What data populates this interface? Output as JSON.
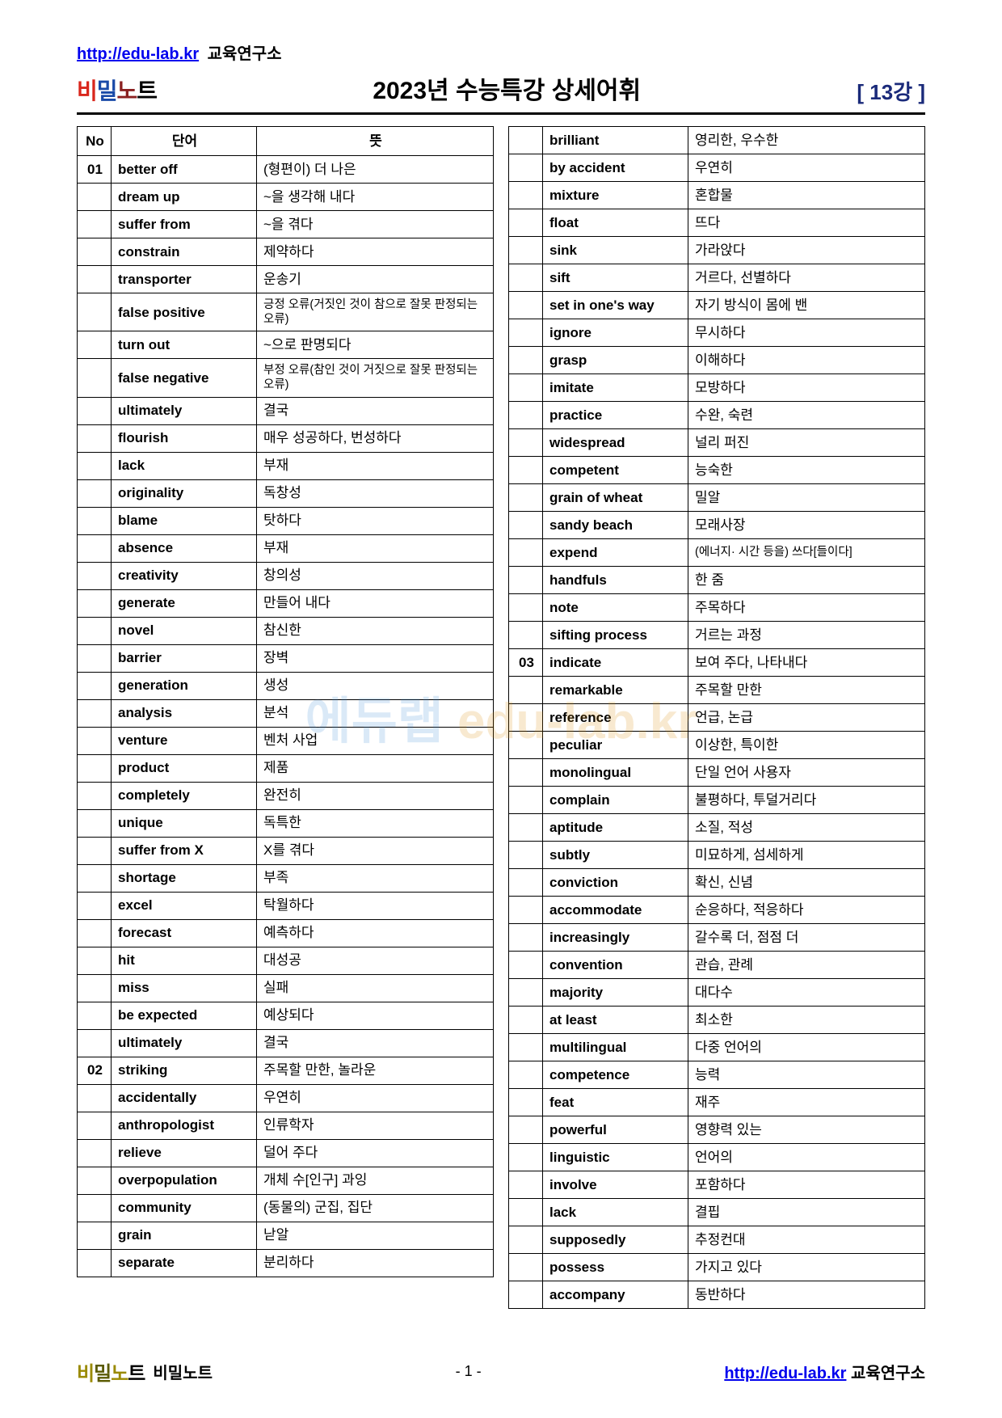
{
  "header": {
    "url": "http://edu-lab.kr",
    "org": "교육연구소",
    "logo_parts": [
      "비",
      "밀",
      "노",
      "트"
    ],
    "title": "2023년  수능특강  상세어휘",
    "lesson": "[ 13강 ]"
  },
  "table_headers": {
    "no": "No",
    "word": "단어",
    "meaning": "뜻"
  },
  "left": [
    {
      "no": "01",
      "w": "better off",
      "m": "(형편이) 더 나은"
    },
    {
      "no": "",
      "w": "dream up",
      "m": "~을 생각해 내다"
    },
    {
      "no": "",
      "w": "suffer from",
      "m": "~을 겪다"
    },
    {
      "no": "",
      "w": "constrain",
      "m": "제약하다"
    },
    {
      "no": "",
      "w": "transporter",
      "m": "운송기"
    },
    {
      "no": "",
      "w": "false positive",
      "m": "긍정 오류(거짓인 것이 참으로 잘못 판정되는 오류)",
      "small": true
    },
    {
      "no": "",
      "w": "turn out",
      "m": "~으로 판명되다"
    },
    {
      "no": "",
      "w": "false negative",
      "m": "부정 오류(참인 것이 거짓으로 잘못 판정되는 오류)",
      "small": true
    },
    {
      "no": "",
      "w": "ultimately",
      "m": "결국"
    },
    {
      "no": "",
      "w": "flourish",
      "m": "매우 성공하다, 번성하다"
    },
    {
      "no": "",
      "w": "lack",
      "m": "부재"
    },
    {
      "no": "",
      "w": "originality",
      "m": "독창성"
    },
    {
      "no": "",
      "w": "blame",
      "m": "탓하다"
    },
    {
      "no": "",
      "w": "absence",
      "m": "부재"
    },
    {
      "no": "",
      "w": "creativity",
      "m": "창의성"
    },
    {
      "no": "",
      "w": "generate",
      "m": "만들어 내다"
    },
    {
      "no": "",
      "w": "novel",
      "m": "참신한"
    },
    {
      "no": "",
      "w": "barrier",
      "m": "장벽"
    },
    {
      "no": "",
      "w": "generation",
      "m": "생성"
    },
    {
      "no": "",
      "w": "analysis",
      "m": "분석"
    },
    {
      "no": "",
      "w": "venture",
      "m": "벤처 사업"
    },
    {
      "no": "",
      "w": "product",
      "m": "제품"
    },
    {
      "no": "",
      "w": "completely",
      "m": "완전히"
    },
    {
      "no": "",
      "w": "unique",
      "m": "독특한"
    },
    {
      "no": "",
      "w": "suffer from X",
      "m": "X를 겪다"
    },
    {
      "no": "",
      "w": "shortage",
      "m": "부족"
    },
    {
      "no": "",
      "w": "excel",
      "m": "탁월하다"
    },
    {
      "no": "",
      "w": "forecast",
      "m": "예측하다"
    },
    {
      "no": "",
      "w": "hit",
      "m": "대성공"
    },
    {
      "no": "",
      "w": "miss",
      "m": "실패"
    },
    {
      "no": "",
      "w": "be expected",
      "m": "예상되다"
    },
    {
      "no": "",
      "w": "ultimately",
      "m": "결국"
    },
    {
      "no": "02",
      "w": "striking",
      "m": "주목할 만한, 놀라운"
    },
    {
      "no": "",
      "w": "accidentally",
      "m": "우연히"
    },
    {
      "no": "",
      "w": "anthropologist",
      "m": "인류학자"
    },
    {
      "no": "",
      "w": "relieve",
      "m": "덜어 주다"
    },
    {
      "no": "",
      "w": "overpopulation",
      "m": "개체 수[인구] 과잉"
    },
    {
      "no": "",
      "w": "community",
      "m": "(동물의) 군집, 집단"
    },
    {
      "no": "",
      "w": "grain",
      "m": "낟알"
    },
    {
      "no": "",
      "w": "separate",
      "m": "분리하다"
    }
  ],
  "right": [
    {
      "no": "",
      "w": "brilliant",
      "m": "영리한, 우수한"
    },
    {
      "no": "",
      "w": "by accident",
      "m": "우연히"
    },
    {
      "no": "",
      "w": "mixture",
      "m": "혼합물"
    },
    {
      "no": "",
      "w": "float",
      "m": "뜨다"
    },
    {
      "no": "",
      "w": "sink",
      "m": "가라앉다"
    },
    {
      "no": "",
      "w": "sift",
      "m": "거르다, 선별하다"
    },
    {
      "no": "",
      "w": "set in one's way",
      "m": "자기 방식이 몸에 밴"
    },
    {
      "no": "",
      "w": "ignore",
      "m": "무시하다"
    },
    {
      "no": "",
      "w": "grasp",
      "m": "이해하다"
    },
    {
      "no": "",
      "w": "imitate",
      "m": "모방하다"
    },
    {
      "no": "",
      "w": "practice",
      "m": "수완, 숙련"
    },
    {
      "no": "",
      "w": "widespread",
      "m": "널리 퍼진"
    },
    {
      "no": "",
      "w": "competent",
      "m": "능숙한"
    },
    {
      "no": "",
      "w": "grain of wheat",
      "m": "밀알"
    },
    {
      "no": "",
      "w": "sandy beach",
      "m": "모래사장"
    },
    {
      "no": "",
      "w": "expend",
      "m": "(에너지· 시간 등을) 쓰다[들이다]",
      "small": true
    },
    {
      "no": "",
      "w": "handfuls",
      "m": "한 줌"
    },
    {
      "no": "",
      "w": "note",
      "m": "주목하다"
    },
    {
      "no": "",
      "w": "sifting process",
      "m": "거르는 과정"
    },
    {
      "no": "03",
      "w": "indicate",
      "m": "보여 주다, 나타내다"
    },
    {
      "no": "",
      "w": "remarkable",
      "m": "주목할 만한"
    },
    {
      "no": "",
      "w": "reference",
      "m": "언급, 논급"
    },
    {
      "no": "",
      "w": "peculiar",
      "m": "이상한, 특이한"
    },
    {
      "no": "",
      "w": "monolingual",
      "m": "단일 언어 사용자"
    },
    {
      "no": "",
      "w": "complain",
      "m": "불평하다, 투덜거리다"
    },
    {
      "no": "",
      "w": "aptitude",
      "m": "소질, 적성"
    },
    {
      "no": "",
      "w": "subtly",
      "m": "미묘하게, 섬세하게"
    },
    {
      "no": "",
      "w": "conviction",
      "m": "확신, 신념"
    },
    {
      "no": "",
      "w": "accommodate",
      "m": "순응하다, 적응하다"
    },
    {
      "no": "",
      "w": "increasingly",
      "m": "갈수록 더, 점점 더"
    },
    {
      "no": "",
      "w": "convention",
      "m": "관습, 관례"
    },
    {
      "no": "",
      "w": "majority",
      "m": "대다수"
    },
    {
      "no": "",
      "w": "at least",
      "m": "최소한"
    },
    {
      "no": "",
      "w": "multilingual",
      "m": "다중 언어의"
    },
    {
      "no": "",
      "w": "competence",
      "m": "능력"
    },
    {
      "no": "",
      "w": "feat",
      "m": "재주"
    },
    {
      "no": "",
      "w": "powerful",
      "m": "영향력 있는"
    },
    {
      "no": "",
      "w": "linguistic",
      "m": "언어의"
    },
    {
      "no": "",
      "w": "involve",
      "m": "포함하다"
    },
    {
      "no": "",
      "w": "lack",
      "m": "결핍"
    },
    {
      "no": "",
      "w": "supposedly",
      "m": "추정컨대"
    },
    {
      "no": "",
      "w": "possess",
      "m": "가지고 있다"
    },
    {
      "no": "",
      "w": "accompany",
      "m": "동반하다"
    }
  ],
  "watermark": {
    "k": "에듀랩 ",
    "e": "edu-lab.kr"
  },
  "footer": {
    "logo_parts": [
      "비",
      "밀",
      "노",
      "트"
    ],
    "logo_sub": "비밀노트",
    "page": "- 1 -",
    "url": "http://edu-lab.kr",
    "org": "교육연구소"
  }
}
